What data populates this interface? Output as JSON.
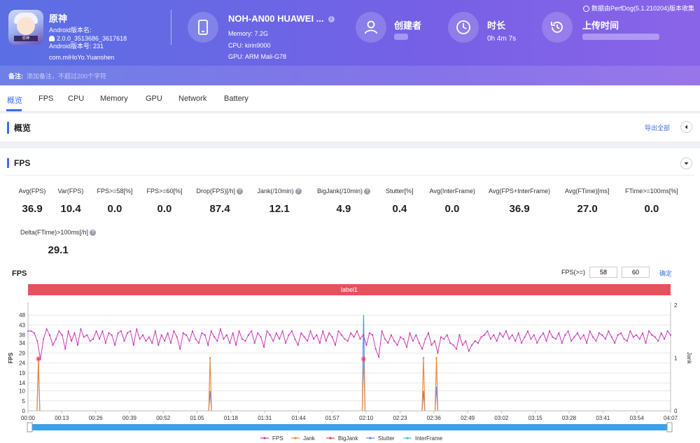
{
  "app": {
    "name": "原神",
    "version_label": "Android版本名:",
    "version_name": "2.0.0_3513686_3617618",
    "version_code_label": "Android版本号: 231",
    "package": "com.miHoYo.Yuanshen",
    "icon": "game-avatar-icon",
    "icon_text": "原神"
  },
  "device": {
    "title": "NOH-AN00 HUAWEI ...",
    "memory": "Memory: 7.2G",
    "cpu": "CPU: kirin9000",
    "gpu": "GPU: ARM Mali-G78"
  },
  "creator": {
    "label": "创建者"
  },
  "duration": {
    "label": "时长",
    "value": "0h 4m 7s"
  },
  "upload": {
    "label": "上传时间"
  },
  "source_note": "数据由PerfDog(5.1.210204)版本收集",
  "remark": {
    "label": "备注:",
    "placeholder": "添加备注，不超过200个字符"
  },
  "tabs": [
    "概览",
    "FPS",
    "CPU",
    "Memory",
    "GPU",
    "Network",
    "Battery"
  ],
  "overview": {
    "title": "概览",
    "export": "导出全部"
  },
  "fps_section": {
    "title": "FPS"
  },
  "metrics_row1": [
    {
      "label": "Avg(FPS)",
      "value": "36.9",
      "help": false
    },
    {
      "label": "Var(FPS)",
      "value": "10.4",
      "help": false
    },
    {
      "label": "FPS>=58[%]",
      "value": "0.0",
      "help": false
    },
    {
      "label": "FPS>=60[%]",
      "value": "0.0",
      "help": false
    },
    {
      "label": "Drop(FPS)[/h]",
      "value": "87.4",
      "help": true
    },
    {
      "label": "Jank(/10min)",
      "value": "12.1",
      "help": true
    },
    {
      "label": "BigJank(/10min)",
      "value": "4.9",
      "help": true
    },
    {
      "label": "Stutter[%]",
      "value": "0.4",
      "help": false
    },
    {
      "label": "Avg(InterFrame)",
      "value": "0.0",
      "help": false
    },
    {
      "label": "Avg(FPS+InterFrame)",
      "value": "36.9",
      "help": false
    },
    {
      "label": "Avg(FTime)[ms]",
      "value": "27.0",
      "help": false
    },
    {
      "label": "FTime>=100ms[%]",
      "value": "0.0",
      "help": false
    }
  ],
  "metrics_row2": [
    {
      "label": "Delta(FTime)>100ms[/h]",
      "value": "29.1",
      "help": true
    }
  ],
  "fps_threshold": {
    "label": "FPS(>=)",
    "value1": "58",
    "value2": "60",
    "confirm": "确定"
  },
  "chart_data": {
    "type": "line",
    "title": "FPS",
    "label_band": "label1",
    "ylabel": "FPS",
    "y2label": "Jank",
    "yticks": [
      0,
      5,
      10,
      14,
      19,
      24,
      29,
      34,
      38,
      43,
      48
    ],
    "ylim": [
      0,
      53
    ],
    "y2ticks": [
      0,
      1,
      2
    ],
    "y2lim": [
      0,
      2
    ],
    "x_ticks": [
      "00:00",
      "00:13",
      "00:26",
      "00:39",
      "00:52",
      "01:05",
      "01:18",
      "01:31",
      "01:44",
      "01:57",
      "02:10",
      "02:23",
      "02:36",
      "02:49",
      "03:02",
      "03:15",
      "03:28",
      "03:41",
      "03:54",
      "04:07"
    ],
    "x_range_seconds": [
      0,
      247
    ],
    "legend": [
      "FPS",
      "Jank",
      "BigJank",
      "Stutter",
      "InterFrame"
    ],
    "colors": {
      "FPS": "#c93bb8",
      "Jank": "#f08a3a",
      "BigJank": "#e8434f",
      "Stutter": "#5b8def",
      "InterFrame": "#3ec6d6",
      "label_band": "#e8505f",
      "scrollbar": "#3aa0e8"
    },
    "fps_series": [
      40,
      40,
      39,
      35,
      26,
      36,
      41,
      38,
      33,
      36,
      40,
      38,
      31,
      40,
      35,
      39,
      33,
      41,
      37,
      38,
      35,
      36,
      40,
      36,
      40,
      34,
      39,
      38,
      33,
      39,
      40,
      35,
      39,
      40,
      33,
      41,
      36,
      38,
      35,
      37,
      34,
      40,
      33,
      38,
      35,
      39,
      34,
      40,
      37,
      31,
      39,
      38,
      35,
      40,
      36,
      34,
      39,
      38,
      33,
      40,
      37,
      35,
      41,
      36,
      38,
      34,
      39,
      33,
      40,
      36,
      35,
      38,
      40,
      34,
      39,
      37,
      32,
      40,
      38,
      35,
      39,
      36,
      40,
      34,
      38,
      40,
      36,
      33,
      39,
      37,
      35,
      40,
      36,
      38,
      34,
      40,
      35,
      39,
      37,
      33,
      40,
      38,
      36,
      35,
      39,
      37,
      40,
      36,
      38,
      33,
      39,
      38,
      31,
      27,
      40,
      36,
      34,
      38,
      35,
      33,
      37,
      36,
      32,
      39,
      35,
      38,
      34,
      31,
      36,
      39,
      33,
      35,
      29,
      37,
      36,
      38,
      34,
      33,
      31,
      38,
      33,
      35,
      30,
      33,
      35,
      34,
      37,
      38,
      40,
      36,
      38,
      35,
      39,
      37,
      40,
      36,
      38,
      35,
      39,
      34,
      37,
      40,
      36,
      38,
      34,
      37,
      39,
      35,
      40,
      37,
      36,
      39,
      34,
      38,
      40,
      35,
      37,
      39,
      36,
      38,
      34,
      40,
      37,
      35,
      39,
      38,
      36,
      40,
      37,
      34,
      38,
      39,
      36,
      35,
      40,
      37,
      38,
      36,
      39,
      34,
      40,
      38,
      37,
      35,
      39,
      36,
      40,
      38
    ],
    "jank_points": [
      [
        4,
        1
      ],
      [
        70,
        1
      ],
      [
        129,
        1
      ],
      [
        152,
        1
      ],
      [
        157,
        1
      ]
    ],
    "bigjank_points": [
      [
        4,
        26
      ],
      [
        129,
        26
      ]
    ],
    "stutter_points": [
      [
        4,
        25
      ],
      [
        70,
        10
      ],
      [
        129,
        48
      ],
      [
        152,
        10
      ],
      [
        157,
        12
      ]
    ]
  }
}
